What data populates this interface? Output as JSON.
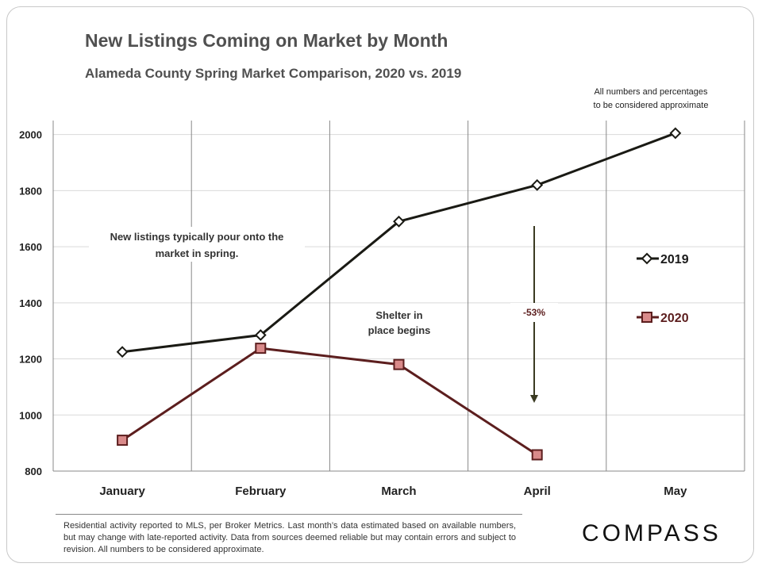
{
  "title": "New Listings Coming on Market by Month",
  "subtitle": "Alameda County Spring Market Comparison,  2020 vs. 2019",
  "disclaimer_top": [
    "All numbers and percentages",
    "to be considered approximate"
  ],
  "footnote": "Residential activity reported to MLS, per Broker Metrics. Last month’s data estimated based on available numbers, but may change with late-reported activity. Data from sources deemed reliable but may contain errors and subject to revision. All numbers to be considered approximate.",
  "brand": "COMPASS",
  "colors": {
    "series_2019": "#1a1a14",
    "series_2020": "#5c1e1e",
    "marker_2020_fill": "#d98a8a",
    "arrow": "#3a3a22",
    "grid": "#888888"
  },
  "chart_data": {
    "type": "line",
    "categories": [
      "January",
      "February",
      "March",
      "April",
      "May"
    ],
    "ylim": [
      800,
      2050
    ],
    "yticks": [
      800,
      1000,
      1200,
      1400,
      1600,
      1800,
      2000
    ],
    "grid": "vertical",
    "legend_position": "right",
    "series": [
      {
        "name": "2019",
        "marker": "diamond",
        "values": [
          1225,
          1285,
          1690,
          1820,
          2005
        ]
      },
      {
        "name": "2020",
        "marker": "square",
        "values": [
          910,
          1238,
          1180,
          858,
          null
        ]
      }
    ],
    "annotations": [
      {
        "lines": [
          "New listings typically pour onto the",
          "market in spring."
        ]
      },
      {
        "lines": [
          "Shelter in",
          "place  begins"
        ]
      },
      {
        "text": "-53%"
      }
    ]
  }
}
